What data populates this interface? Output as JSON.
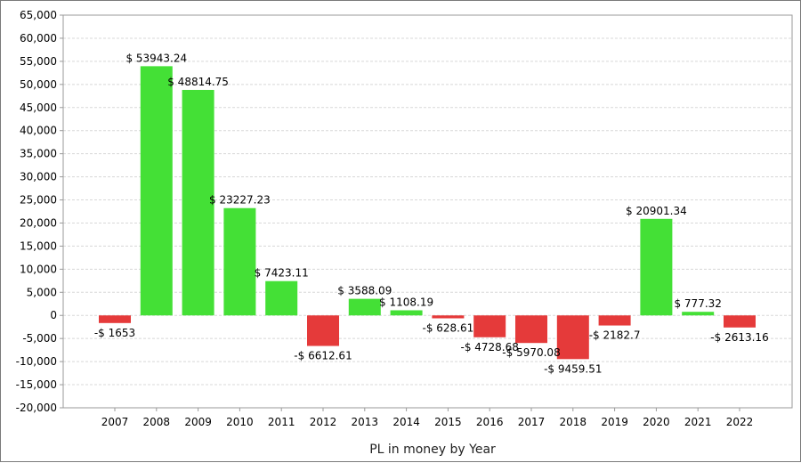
{
  "chart_data": {
    "type": "bar",
    "title": "",
    "xlabel": "PL in money by Year",
    "ylabel": "",
    "ylim": [
      -20000,
      65000
    ],
    "ytick_step": 5000,
    "yticks": [
      "65,000",
      "60,000",
      "55,000",
      "50,000",
      "45,000",
      "40,000",
      "35,000",
      "30,000",
      "25,000",
      "20,000",
      "15,000",
      "10,000",
      "5,000",
      "0",
      "-5,000",
      "-10,000",
      "-15,000",
      "-20,000"
    ],
    "grid": true,
    "legend": "none",
    "categories": [
      "2007",
      "2008",
      "2009",
      "2010",
      "2011",
      "2012",
      "2013",
      "2014",
      "2015",
      "2016",
      "2017",
      "2018",
      "2019",
      "2020",
      "2021",
      "2022"
    ],
    "values": [
      -1653,
      53943.24,
      48814.75,
      23227.23,
      7423.11,
      -6612.61,
      3588.09,
      1108.19,
      -628.61,
      -4728.68,
      -5970.08,
      -9459.51,
      -2182.7,
      20901.34,
      777.32,
      -2613.16
    ],
    "labels": [
      "-$ 1653",
      "$ 53943.24",
      "$ 48814.75",
      "$ 23227.23",
      "$ 7423.11",
      "-$ 6612.61",
      "$ 3588.09",
      "$ 1108.19",
      "-$ 628.61",
      "-$ 4728.68",
      "-$ 5970.08",
      "-$ 9459.51",
      "-$ 2182.7",
      "$ 20901.34",
      "$ 777.32",
      "-$ 2613.16"
    ],
    "colors": {
      "positive": "#44e036",
      "negative": "#e53a3a",
      "grid": "#d8d8d8",
      "axis": "#9a9a9a"
    }
  }
}
